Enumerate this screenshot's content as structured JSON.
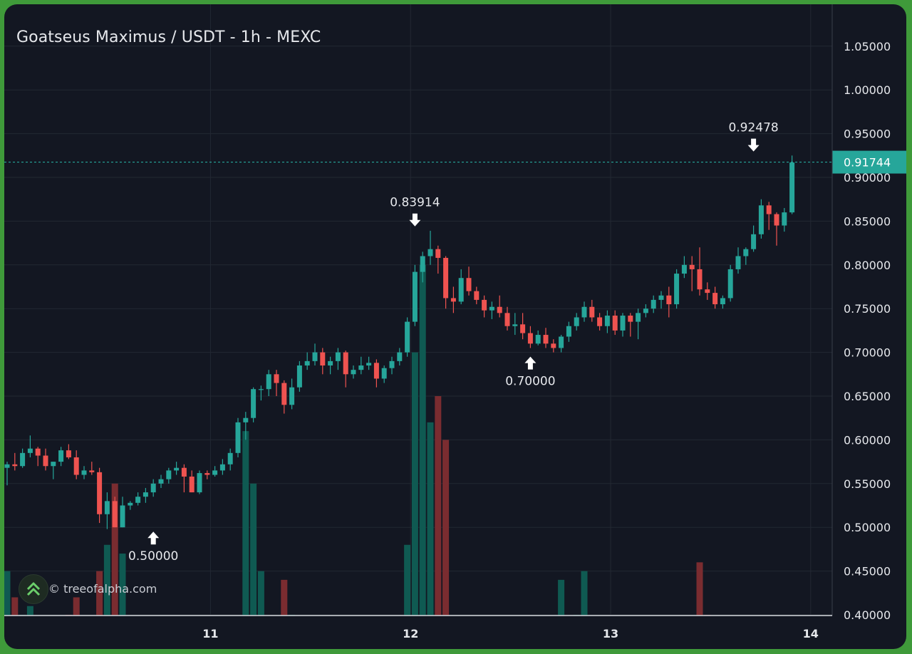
{
  "title": "Goatseus Maximus / USDT - 1h - MEXC",
  "watermark": {
    "text": "© treeofalpha.com",
    "icon": "double-chevron-up-icon"
  },
  "colors": {
    "up": "#26a69a",
    "down": "#ef5350",
    "up_vol": "#0f5a52",
    "down_vol": "#7a2c30",
    "grid": "#232833",
    "text": "#e6e8ec",
    "price_line": "#26a69a"
  },
  "chart_data": {
    "type": "candlestick",
    "x_ticks": [
      "11",
      "12",
      "13",
      "14"
    ],
    "y_ticks": [
      "0.40000",
      "0.45000",
      "0.50000",
      "0.55000",
      "0.60000",
      "0.65000",
      "0.70000",
      "0.75000",
      "0.80000",
      "0.85000",
      "0.90000",
      "0.95000",
      "1.00000",
      "1.05000"
    ],
    "ylim": [
      0.4,
      1.07
    ],
    "grid": true,
    "last_price": {
      "value": 0.91744,
      "label": "0.91744"
    },
    "annotations": [
      {
        "label": "0.50000",
        "value": 0.5,
        "index": 19,
        "arrow": "up"
      },
      {
        "label": "0.83914",
        "value": 0.83914,
        "index": 53,
        "arrow": "down"
      },
      {
        "label": "0.70000",
        "value": 0.7,
        "index": 68,
        "arrow": "up"
      },
      {
        "label": "0.92478",
        "value": 0.92478,
        "index": 97,
        "arrow": "down"
      }
    ],
    "x_index_day_start": [
      26,
      52,
      78,
      104
    ],
    "candles": [
      [
        0.568,
        0.575,
        0.548,
        0.572
      ],
      [
        0.572,
        0.585,
        0.565,
        0.57
      ],
      [
        0.57,
        0.59,
        0.568,
        0.585
      ],
      [
        0.585,
        0.605,
        0.58,
        0.59
      ],
      [
        0.59,
        0.592,
        0.57,
        0.582
      ],
      [
        0.582,
        0.59,
        0.565,
        0.57
      ],
      [
        0.57,
        0.575,
        0.555,
        0.575
      ],
      [
        0.575,
        0.592,
        0.57,
        0.588
      ],
      [
        0.588,
        0.595,
        0.578,
        0.58
      ],
      [
        0.58,
        0.588,
        0.555,
        0.56
      ],
      [
        0.56,
        0.57,
        0.555,
        0.565
      ],
      [
        0.565,
        0.575,
        0.56,
        0.563
      ],
      [
        0.563,
        0.568,
        0.505,
        0.515
      ],
      [
        0.515,
        0.54,
        0.498,
        0.53
      ],
      [
        0.53,
        0.535,
        0.5,
        0.5
      ],
      [
        0.5,
        0.535,
        0.5,
        0.525
      ],
      [
        0.525,
        0.53,
        0.52,
        0.528
      ],
      [
        0.528,
        0.54,
        0.525,
        0.535
      ],
      [
        0.535,
        0.545,
        0.528,
        0.54
      ],
      [
        0.54,
        0.555,
        0.535,
        0.55
      ],
      [
        0.55,
        0.56,
        0.545,
        0.555
      ],
      [
        0.555,
        0.568,
        0.55,
        0.565
      ],
      [
        0.565,
        0.575,
        0.56,
        0.568
      ],
      [
        0.568,
        0.572,
        0.54,
        0.558
      ],
      [
        0.558,
        0.565,
        0.54,
        0.54
      ],
      [
        0.54,
        0.565,
        0.538,
        0.562
      ],
      [
        0.562,
        0.565,
        0.555,
        0.56
      ],
      [
        0.56,
        0.57,
        0.558,
        0.565
      ],
      [
        0.565,
        0.578,
        0.56,
        0.572
      ],
      [
        0.572,
        0.59,
        0.565,
        0.585
      ],
      [
        0.585,
        0.625,
        0.58,
        0.62
      ],
      [
        0.62,
        0.632,
        0.6,
        0.625
      ],
      [
        0.625,
        0.66,
        0.62,
        0.658
      ],
      [
        0.658,
        0.662,
        0.645,
        0.658
      ],
      [
        0.658,
        0.68,
        0.65,
        0.675
      ],
      [
        0.675,
        0.68,
        0.65,
        0.665
      ],
      [
        0.665,
        0.668,
        0.63,
        0.64
      ],
      [
        0.64,
        0.67,
        0.635,
        0.66
      ],
      [
        0.66,
        0.69,
        0.655,
        0.685
      ],
      [
        0.685,
        0.7,
        0.68,
        0.69
      ],
      [
        0.69,
        0.71,
        0.685,
        0.7
      ],
      [
        0.7,
        0.705,
        0.675,
        0.685
      ],
      [
        0.685,
        0.695,
        0.675,
        0.69
      ],
      [
        0.69,
        0.705,
        0.68,
        0.7
      ],
      [
        0.7,
        0.702,
        0.66,
        0.675
      ],
      [
        0.675,
        0.685,
        0.67,
        0.68
      ],
      [
        0.68,
        0.695,
        0.675,
        0.685
      ],
      [
        0.685,
        0.695,
        0.68,
        0.688
      ],
      [
        0.688,
        0.692,
        0.66,
        0.67
      ],
      [
        0.67,
        0.685,
        0.665,
        0.682
      ],
      [
        0.682,
        0.695,
        0.675,
        0.69
      ],
      [
        0.69,
        0.705,
        0.685,
        0.7
      ],
      [
        0.7,
        0.74,
        0.695,
        0.735
      ],
      [
        0.735,
        0.8,
        0.73,
        0.792
      ],
      [
        0.792,
        0.815,
        0.78,
        0.81
      ],
      [
        0.81,
        0.839,
        0.8,
        0.818
      ],
      [
        0.818,
        0.822,
        0.79,
        0.808
      ],
      [
        0.808,
        0.81,
        0.75,
        0.762
      ],
      [
        0.762,
        0.775,
        0.745,
        0.758
      ],
      [
        0.758,
        0.795,
        0.755,
        0.785
      ],
      [
        0.785,
        0.798,
        0.765,
        0.77
      ],
      [
        0.77,
        0.775,
        0.755,
        0.76
      ],
      [
        0.76,
        0.765,
        0.74,
        0.748
      ],
      [
        0.748,
        0.758,
        0.738,
        0.752
      ],
      [
        0.752,
        0.765,
        0.74,
        0.745
      ],
      [
        0.745,
        0.752,
        0.725,
        0.73
      ],
      [
        0.73,
        0.745,
        0.72,
        0.732
      ],
      [
        0.732,
        0.745,
        0.715,
        0.722
      ],
      [
        0.722,
        0.73,
        0.705,
        0.71
      ],
      [
        0.71,
        0.725,
        0.708,
        0.72
      ],
      [
        0.72,
        0.728,
        0.705,
        0.71
      ],
      [
        0.71,
        0.715,
        0.7,
        0.705
      ],
      [
        0.705,
        0.72,
        0.7,
        0.718
      ],
      [
        0.718,
        0.735,
        0.712,
        0.73
      ],
      [
        0.73,
        0.745,
        0.725,
        0.74
      ],
      [
        0.74,
        0.758,
        0.735,
        0.752
      ],
      [
        0.752,
        0.76,
        0.735,
        0.74
      ],
      [
        0.74,
        0.745,
        0.725,
        0.73
      ],
      [
        0.73,
        0.748,
        0.722,
        0.742
      ],
      [
        0.742,
        0.748,
        0.72,
        0.725
      ],
      [
        0.725,
        0.745,
        0.718,
        0.742
      ],
      [
        0.742,
        0.745,
        0.718,
        0.735
      ],
      [
        0.735,
        0.75,
        0.715,
        0.745
      ],
      [
        0.745,
        0.755,
        0.74,
        0.75
      ],
      [
        0.75,
        0.765,
        0.745,
        0.76
      ],
      [
        0.76,
        0.77,
        0.75,
        0.765
      ],
      [
        0.765,
        0.775,
        0.74,
        0.755
      ],
      [
        0.755,
        0.795,
        0.75,
        0.79
      ],
      [
        0.79,
        0.81,
        0.785,
        0.8
      ],
      [
        0.8,
        0.81,
        0.77,
        0.795
      ],
      [
        0.795,
        0.82,
        0.765,
        0.772
      ],
      [
        0.772,
        0.78,
        0.76,
        0.768
      ],
      [
        0.768,
        0.775,
        0.75,
        0.755
      ],
      [
        0.755,
        0.765,
        0.75,
        0.762
      ],
      [
        0.762,
        0.8,
        0.758,
        0.795
      ],
      [
        0.795,
        0.82,
        0.79,
        0.81
      ],
      [
        0.81,
        0.82,
        0.8,
        0.818
      ],
      [
        0.818,
        0.845,
        0.815,
        0.835
      ],
      [
        0.835,
        0.875,
        0.83,
        0.868
      ],
      [
        0.868,
        0.872,
        0.84,
        0.858
      ],
      [
        0.858,
        0.86,
        0.822,
        0.845
      ],
      [
        0.845,
        0.865,
        0.838,
        0.86
      ],
      [
        0.86,
        0.925,
        0.858,
        0.917
      ]
    ],
    "volumes": [
      0.45,
      0.42,
      0.4,
      0.41,
      0.38,
      0.39,
      0.36,
      0.38,
      0.4,
      0.42,
      0.38,
      0.39,
      0.45,
      0.48,
      0.55,
      0.47,
      0.33,
      0.31,
      0.28,
      0.27,
      0.29,
      0.3,
      0.31,
      0.33,
      0.26,
      0.3,
      0.29,
      0.25,
      0.27,
      0.28,
      0.34,
      0.61,
      0.55,
      0.45,
      0.35,
      0.38,
      0.44,
      0.4,
      0.34,
      0.33,
      0.34,
      0.35,
      0.37,
      0.29,
      0.3,
      0.36,
      0.27,
      0.28,
      0.27,
      0.28,
      0.32,
      0.37,
      0.48,
      0.7,
      0.8,
      0.62,
      0.65,
      0.6,
      0.38,
      0.32,
      0.35,
      0.34,
      0.36,
      0.34,
      0.29,
      0.32,
      0.3,
      0.27,
      0.28,
      0.32,
      0.22,
      0.36,
      0.44,
      0.38,
      0.4,
      0.45,
      0.29,
      0.27,
      0.23,
      0.27,
      0.27,
      0.33,
      0.35,
      0.37,
      0.3,
      0.35,
      0.32,
      0.28,
      0.37,
      0.38,
      0.46,
      0.4,
      0.35,
      0.3,
      0.27,
      0.28,
      0.3,
      0.35,
      0.27,
      0.39,
      0.33,
      0.34,
      0.38
    ]
  }
}
